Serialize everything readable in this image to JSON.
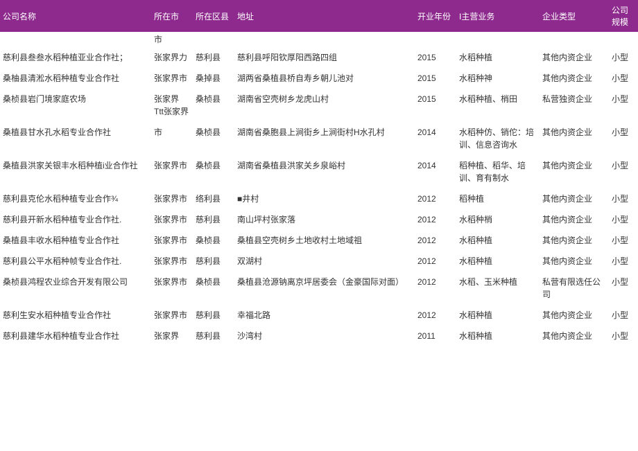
{
  "header": {
    "company": "公司名称",
    "city": "所在市",
    "county": "所在区县",
    "address": "地址",
    "year": "开业年份",
    "business": "I主营业务",
    "type": "企业类型",
    "scale": "公司规模"
  },
  "pre_row_city": "市",
  "rows": [
    {
      "company": "慈利县叁叁水稻种植亚业合作社；",
      "city": "张家界力",
      "county": "慈利县",
      "address": "慈利县呼阳钦厚阳西路四组",
      "year": "2015",
      "business": "水稻种植",
      "type": "其他内资企业",
      "scale": "小型"
    },
    {
      "company": "桑柚县清淞水稻种植专业合作社",
      "city": "张家界市",
      "county": "桑掉县",
      "address": "湖两省桑植县桥自寿乡朝儿池对",
      "year": "2015",
      "business": "水稻种神",
      "type": "其他内资企业",
      "scale": "小型"
    },
    {
      "company": "桑桢县岩门境家庭农场",
      "city": "张家界\nTtt张家界",
      "county": "桑桢县",
      "address": "湖南省空壳树乡龙虎山村",
      "year": "2015",
      "business": "水稻种植、梢田",
      "type": "私营独资企业",
      "scale": "小型"
    },
    {
      "company": "桑植县甘水孔水稻专业合作社",
      "city": "市",
      "county": "桑桢县",
      "address": "湖南省桑胞县上涧街乡上涧街村H水孔村",
      "year": "2014",
      "business": "水稻种仿、销佗：培训、信息咨询水",
      "type": "其他内资企业",
      "scale": "小型"
    },
    {
      "company": "桑植县洪家关银丰水稻种植i业合作社",
      "city": "张家界市",
      "county": "桑桢县",
      "address": "湖南省桑植县洪家关乡泉峪村",
      "year": "2014",
      "business": "稻种植、稻华、培训、育有制水",
      "type": "其他内资企业",
      "scale": "小型"
    },
    {
      "company": "慈利县克伦水稻种植专业合作¾",
      "city": "张家界市",
      "county": "络利县",
      "address": "■井村",
      "year": "2012",
      "business": "稻种植",
      "type": "其他内资企业",
      "scale": "小型"
    },
    {
      "company": "慈利县开新水稻种植专业合作社.",
      "city": "张家界市",
      "county": "慈利县",
      "address": "南山坪村张家落",
      "year": "2012",
      "business": "水稻种梢",
      "type": "其他内资企业",
      "scale": "小型"
    },
    {
      "company": "桑植县丰收水稻种植专业合作社",
      "city": "张家界市",
      "county": "桑桢县",
      "address": "桑植县空壳树乡土地收村土地域祖",
      "year": "2012",
      "business": "水稻种植",
      "type": "其他内资企业",
      "scale": "小型"
    },
    {
      "company": "慈利县公平水稻种帧专业合作社.",
      "city": "张家界市",
      "county": "慈利县",
      "address": "双湖村",
      "year": "2012",
      "business": "水稻种植",
      "type": "其他内资企业",
      "scale": "小型"
    },
    {
      "company": "桑桢县鸿程农业综合开发有限公司",
      "city": "张家界市",
      "county": "桑桢县",
      "address": "桑植县沧源钠离京坪居委会（金豪国际对面）",
      "year": "2012",
      "business": "水稻、玉米种植",
      "type": "私营有限选任公司",
      "scale": "小型"
    },
    {
      "company": "慈利生安水稻种植专业合作社",
      "city": "张家界市",
      "county": "慈利县",
      "address": "幸福北路",
      "year": "2012",
      "business": "水稻种植",
      "type": "其他内资企业",
      "scale": "小型"
    },
    {
      "company": "慈利县建华水稻种植专业合作社",
      "city": "张家界",
      "county": "慈利县",
      "address": "沙湾村",
      "year": "2011",
      "business": "水稻种植",
      "type": "其他内资企业",
      "scale": "小型"
    }
  ]
}
